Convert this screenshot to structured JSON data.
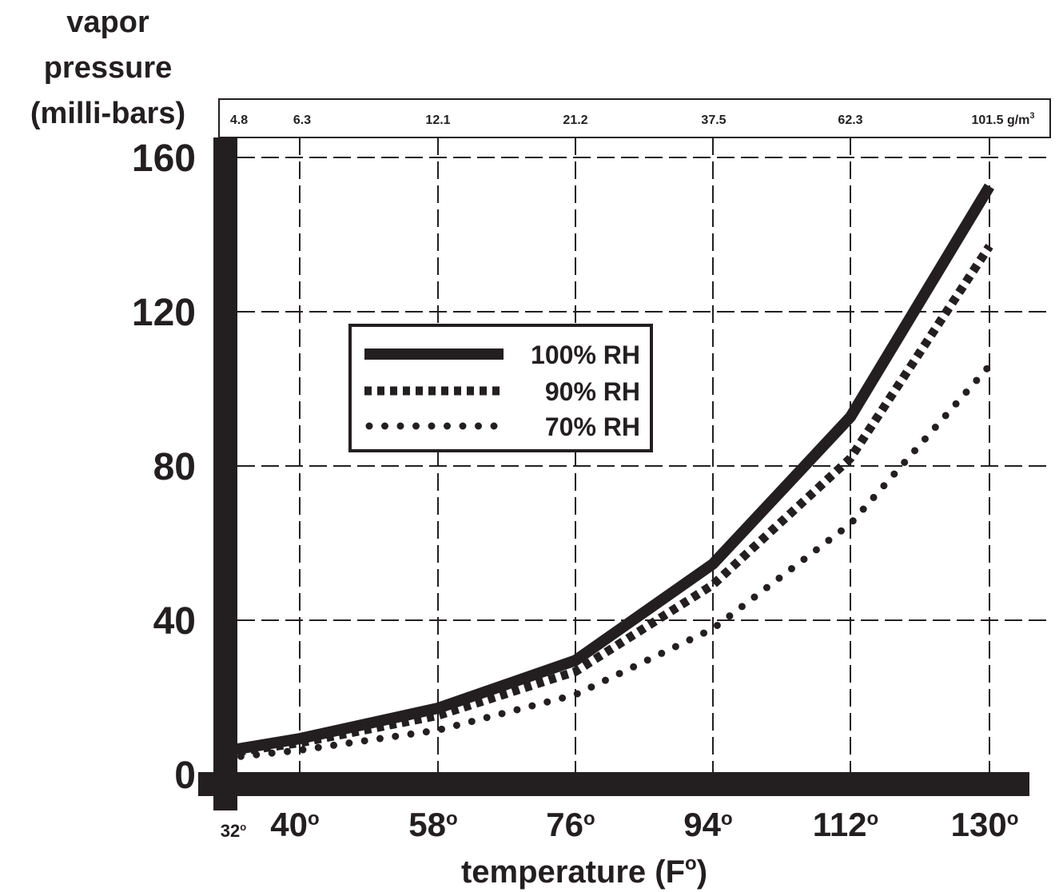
{
  "chart_data": {
    "type": "line",
    "ylabel_lines": [
      "vapor",
      "pressure",
      "(milli-bars)"
    ],
    "xlabel_text": "temperature (F",
    "xlabel_sup": "o",
    "xlabel_close": ")",
    "x": [
      32,
      40,
      58,
      76,
      94,
      112,
      130
    ],
    "x_tick_labels": [
      "32",
      "40",
      "58",
      "76",
      "94",
      "112",
      "130"
    ],
    "degree_mark": "o",
    "y_ticks": [
      0,
      40,
      80,
      120,
      160
    ],
    "y_tick_labels": [
      "0",
      "40",
      "80",
      "120",
      "160"
    ],
    "ylim": [
      0,
      160
    ],
    "top_axis_labels": [
      "4.8",
      "6.3",
      "12.1",
      "21.2",
      "37.5",
      "62.3",
      "101.5 g/m"
    ],
    "top_axis_unit_sup": "3",
    "grid": true,
    "legend_position": "upper-left",
    "series": [
      {
        "name": "100% RH",
        "style": "solid",
        "values": [
          6.1,
          9.3,
          17.2,
          29.6,
          54.6,
          92.7,
          152.5
        ]
      },
      {
        "name": "90% RH",
        "style": "dashed",
        "values": [
          5.5,
          8.2,
          15.3,
          26.7,
          49.2,
          82.0,
          137.0
        ]
      },
      {
        "name": "70% RH",
        "style": "dotted",
        "values": [
          4.3,
          6.3,
          11.5,
          20.7,
          37.8,
          65.0,
          106.0
        ]
      }
    ],
    "colors": {
      "ink": "#231f20",
      "background": "#ffffff"
    }
  }
}
